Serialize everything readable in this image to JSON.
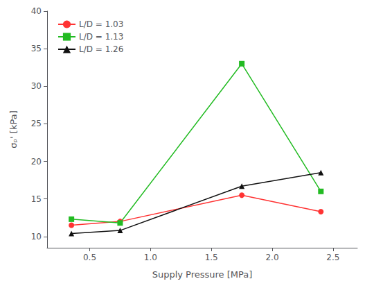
{
  "chart_data": {
    "type": "line",
    "xlabel": "Supply Pressure [MPa]",
    "ylabel": "σₚ' [kPa]",
    "series": [
      {
        "name": "L/D = 1.03",
        "color": "#ff3333",
        "marker": "circle",
        "x": [
          0.35,
          0.75,
          1.75,
          2.4
        ],
        "values": [
          11.5,
          12.0,
          15.5,
          13.3
        ]
      },
      {
        "name": "L/D = 1.13",
        "color": "#22bb22",
        "marker": "square",
        "x": [
          0.35,
          0.75,
          1.75,
          2.4
        ],
        "values": [
          12.3,
          11.8,
          33.0,
          16.0
        ]
      },
      {
        "name": "L/D = 1.26",
        "color": "#111111",
        "marker": "triangle",
        "x": [
          0.35,
          0.75,
          1.75,
          2.4
        ],
        "values": [
          10.4,
          10.8,
          16.7,
          18.5
        ]
      }
    ],
    "xlim": [
      0.15,
      2.7
    ],
    "xticks": [
      0.5,
      {
        "value": 1,
        "label": "1.0"
      },
      1.5,
      {
        "value": 2,
        "label": "2.0"
      },
      2.5
    ],
    "ylim": [
      8.5,
      40
    ],
    "yticks": [
      10,
      15,
      20,
      25,
      30,
      35,
      40
    ],
    "grid": false,
    "legend": "upper left"
  }
}
